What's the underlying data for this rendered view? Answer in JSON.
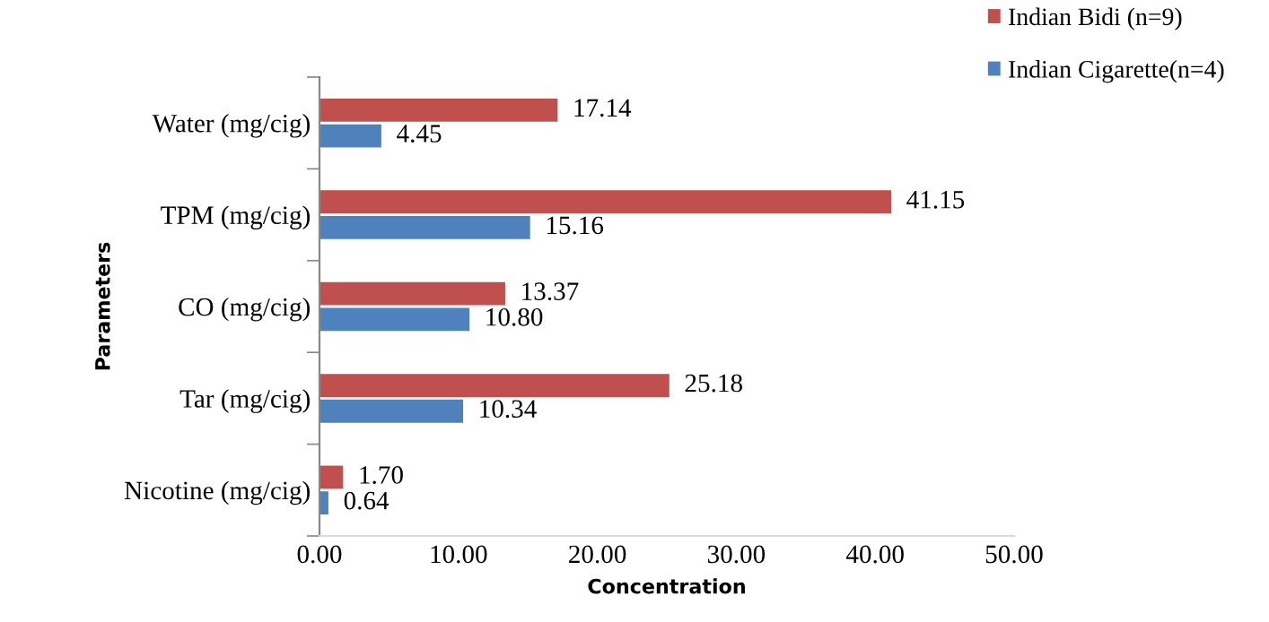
{
  "chart_data": {
    "type": "bar",
    "orientation": "horizontal",
    "xlabel": "Concentration",
    "ylabel": "Parameters",
    "categories": [
      "Water (mg/cig)",
      "TPM (mg/cig)",
      "CO (mg/cig)",
      "Tar (mg/cig)",
      "Nicotine (mg/cig)"
    ],
    "series": [
      {
        "name": "Indian Bidi (n=9)",
        "color": "#c0504d",
        "values": [
          17.14,
          41.15,
          13.37,
          25.18,
          1.7
        ],
        "value_labels": [
          "17.14",
          "41.15",
          "13.37",
          "25.18",
          "1.70"
        ]
      },
      {
        "name": "Indian Cigarette(n=4)",
        "color": "#4f81bd",
        "values": [
          4.45,
          15.16,
          10.8,
          10.34,
          0.64
        ],
        "value_labels": [
          "4.45",
          "15.16",
          "10.80",
          "10.34",
          "0.64"
        ]
      }
    ],
    "xlim": [
      0,
      50
    ],
    "xticks": [
      {
        "value": 0,
        "label": "0.00"
      },
      {
        "value": 10,
        "label": "10.00"
      },
      {
        "value": 20,
        "label": "20.00"
      },
      {
        "value": 30,
        "label": "30.00"
      },
      {
        "value": 40,
        "label": "40.00"
      },
      {
        "value": 50,
        "label": "50.00"
      }
    ],
    "grid": false,
    "legend": "top right"
  }
}
